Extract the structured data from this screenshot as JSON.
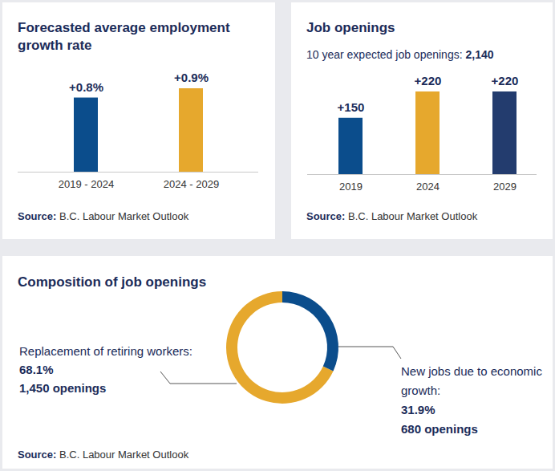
{
  "chart_data": [
    {
      "type": "bar",
      "title": "Forecasted average employment growth rate",
      "categories": [
        "2019 - 2024",
        "2024 - 2029"
      ],
      "values": [
        0.8,
        0.9
      ],
      "value_labels": [
        "+0.8%",
        "+0.9%"
      ],
      "colors": [
        "#0b4d8c",
        "#e6a82d"
      ],
      "data_labels": true,
      "tick_labels": "x",
      "caption": "Source: B.C. Labour Market Outlook"
    },
    {
      "type": "bar",
      "title": "Job openings",
      "subtitle": "10 year expected job openings: 2,140",
      "categories": [
        "2019",
        "2024",
        "2029"
      ],
      "values": [
        150,
        220,
        220
      ],
      "value_labels": [
        "+150",
        "+220",
        "+220"
      ],
      "colors": [
        "#0b4d8c",
        "#e6a82d",
        "#233c6e"
      ],
      "data_labels": true,
      "tick_labels": "x",
      "caption": "Source: B.C. Labour Market Outlook"
    },
    {
      "type": "pie",
      "title": "Composition of job openings",
      "categories": [
        "Replacement of retiring workers:",
        "New jobs due to economic growth:"
      ],
      "values": [
        68.1,
        31.9
      ],
      "value_labels": [
        "68.1%",
        "31.9%"
      ],
      "openings": [
        1450,
        680
      ],
      "openings_labels": [
        "1,450 openings",
        "680 openings"
      ],
      "colors": [
        "#e6a82d",
        "#0b4d8c"
      ],
      "data_labels": true,
      "caption": "Source: B.C. Labour Market Outlook"
    }
  ]
}
